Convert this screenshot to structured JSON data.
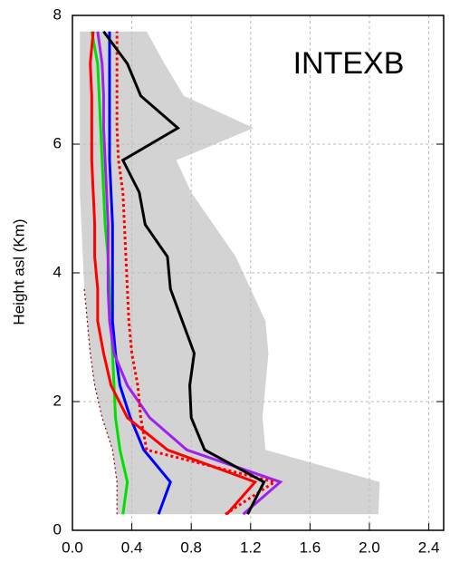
{
  "chart_data": {
    "type": "line",
    "ylabel": "Height asl (Km)",
    "annotation": "INTEXB",
    "y": [
      0.25,
      0.75,
      1.25,
      1.75,
      2.25,
      2.75,
      3.25,
      3.75,
      4.25,
      4.75,
      5.25,
      5.75,
      6.25,
      6.75,
      7.25,
      7.75
    ],
    "band": {
      "color": "#d3d3d3",
      "min": [
        0.3,
        0.3,
        0.27,
        0.2,
        0.15,
        0.12,
        0.1,
        0.08,
        0.07,
        0.06,
        0.05,
        0.05,
        0.05,
        0.05,
        0.05,
        0.05
      ],
      "max": [
        2.06,
        2.07,
        1.3,
        1.28,
        1.3,
        1.32,
        1.3,
        1.2,
        1.1,
        0.95,
        0.8,
        0.7,
        1.22,
        0.75,
        0.62,
        0.5
      ]
    },
    "series": [
      {
        "color": "#8b0000",
        "dash": "2 3",
        "width": 1.2,
        "values": [
          0.3,
          0.3,
          0.27,
          0.2,
          0.15,
          0.12,
          0.1,
          0.08,
          null,
          null,
          null,
          null,
          null,
          null,
          null,
          null
        ]
      },
      {
        "color": "#00e000",
        "dash": "none",
        "width": 3,
        "values": [
          0.34,
          0.37,
          0.32,
          0.29,
          0.28,
          0.27,
          0.26,
          0.25,
          0.24,
          0.22,
          0.21,
          0.2,
          0.19,
          0.18,
          0.17,
          0.13
        ]
      },
      {
        "color": "#0000ff",
        "dash": "none",
        "width": 3,
        "values": [
          0.58,
          0.66,
          0.48,
          0.39,
          0.32,
          0.29,
          0.27,
          0.27,
          0.27,
          0.27,
          0.26,
          0.25,
          0.25,
          0.25,
          0.25,
          0.25
        ]
      },
      {
        "color": "#a020f0",
        "dash": "none",
        "width": 3,
        "values": [
          1.15,
          1.4,
          0.77,
          0.52,
          0.37,
          0.28,
          0.25,
          0.24,
          0.24,
          0.24,
          0.23,
          0.22,
          0.21,
          0.21,
          0.2,
          0.17
        ]
      },
      {
        "color": "#ff0000",
        "dash": "3 3",
        "width": 3,
        "values": [
          1.03,
          1.36,
          0.5,
          0.46,
          0.44,
          0.4,
          0.38,
          0.37,
          0.36,
          0.35,
          0.34,
          0.31,
          0.3,
          0.3,
          0.3,
          0.3
        ]
      },
      {
        "color": "#ff0000",
        "dash": "none",
        "width": 3,
        "values": [
          1.04,
          1.23,
          0.64,
          0.37,
          0.26,
          0.21,
          0.17,
          0.17,
          0.15,
          0.15,
          0.14,
          0.13,
          0.13,
          0.13,
          0.12,
          0.14
        ]
      },
      {
        "color": "#000000",
        "dash": "none",
        "width": 3,
        "values": [
          1.18,
          1.29,
          0.89,
          0.8,
          0.79,
          0.82,
          0.74,
          0.66,
          0.64,
          0.49,
          0.45,
          0.34,
          0.71,
          0.46,
          0.37,
          0.21
        ]
      }
    ],
    "xlim": [
      0,
      2.5
    ],
    "ylim": [
      0,
      8
    ],
    "xticks": [
      {
        "value": 0,
        "label": "0.0"
      },
      0.4,
      0.8,
      1.2,
      1.6,
      {
        "value": 2,
        "label": "2.0"
      },
      2.4
    ],
    "yticks": [
      0,
      2,
      4,
      6,
      8
    ],
    "grid": true
  }
}
